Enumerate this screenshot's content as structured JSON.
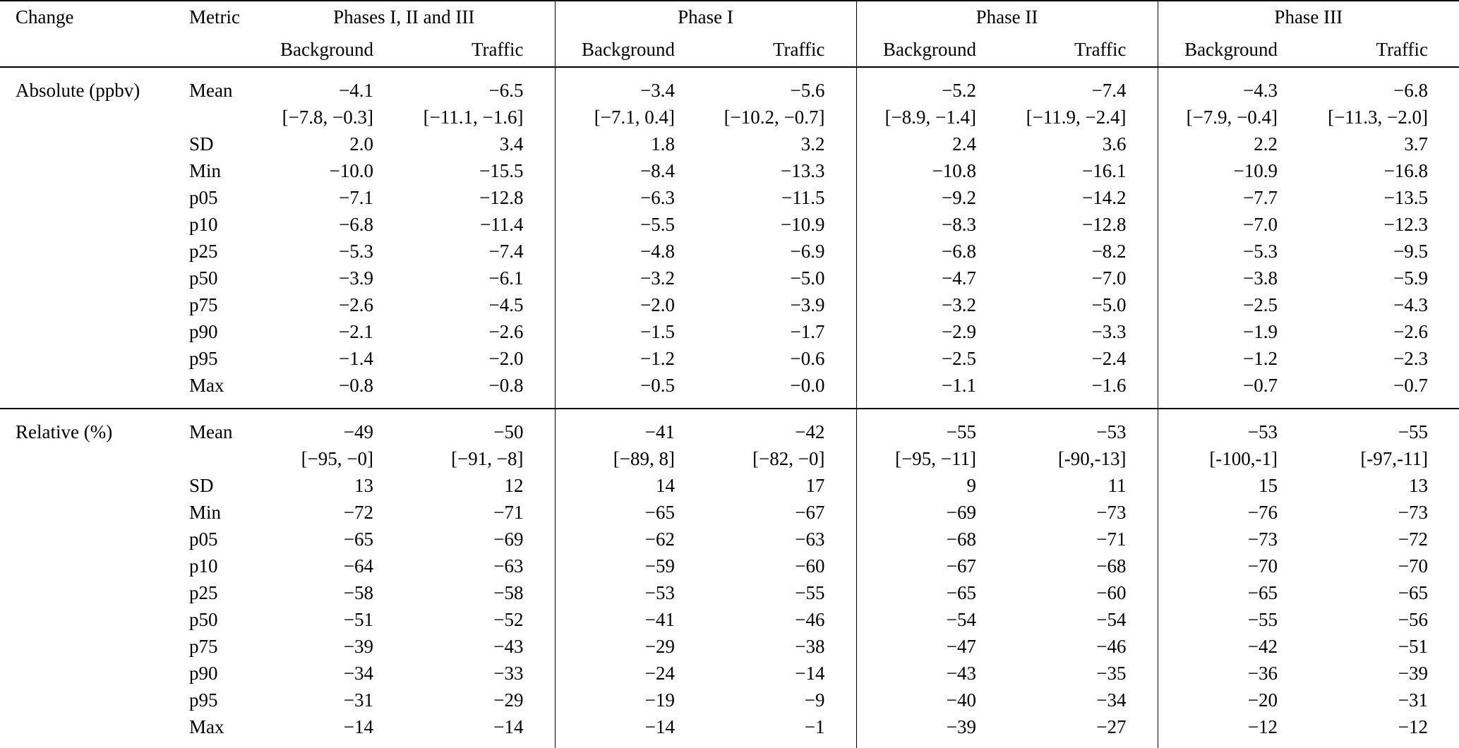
{
  "table": {
    "col_headers": {
      "change": "Change",
      "metric": "Metric",
      "groups": [
        {
          "label": "Phases I, II and III",
          "sub": [
            "Background",
            "Traffic"
          ]
        },
        {
          "label": "Phase I",
          "sub": [
            "Background",
            "Traffic"
          ]
        },
        {
          "label": "Phase II",
          "sub": [
            "Background",
            "Traffic"
          ]
        },
        {
          "label": "Phase III",
          "sub": [
            "Background",
            "Traffic"
          ]
        }
      ]
    },
    "sections": [
      {
        "change": "Absolute (ppbv)",
        "rows": [
          {
            "metric": "Mean",
            "values": [
              "−4.1",
              "−6.5",
              "−3.4",
              "−5.6",
              "−5.2",
              "−7.4",
              "−4.3",
              "−6.8"
            ]
          },
          {
            "metric": "",
            "values": [
              "[−7.8, −0.3]",
              "[−11.1, −1.6]",
              "[−7.1, 0.4]",
              "[−10.2, −0.7]",
              "[−8.9, −1.4]",
              "[−11.9, −2.4]",
              "[−7.9, −0.4]",
              "[−11.3, −2.0]"
            ]
          },
          {
            "metric": "SD",
            "values": [
              "2.0",
              "3.4",
              "1.8",
              "3.2",
              "2.4",
              "3.6",
              "2.2",
              "3.7"
            ]
          },
          {
            "metric": "Min",
            "values": [
              "−10.0",
              "−15.5",
              "−8.4",
              "−13.3",
              "−10.8",
              "−16.1",
              "−10.9",
              "−16.8"
            ]
          },
          {
            "metric": "p05",
            "values": [
              "−7.1",
              "−12.8",
              "−6.3",
              "−11.5",
              "−9.2",
              "−14.2",
              "−7.7",
              "−13.5"
            ]
          },
          {
            "metric": "p10",
            "values": [
              "−6.8",
              "−11.4",
              "−5.5",
              "−10.9",
              "−8.3",
              "−12.8",
              "−7.0",
              "−12.3"
            ]
          },
          {
            "metric": "p25",
            "values": [
              "−5.3",
              "−7.4",
              "−4.8",
              "−6.9",
              "−6.8",
              "−8.2",
              "−5.3",
              "−9.5"
            ]
          },
          {
            "metric": "p50",
            "values": [
              "−3.9",
              "−6.1",
              "−3.2",
              "−5.0",
              "−4.7",
              "−7.0",
              "−3.8",
              "−5.9"
            ]
          },
          {
            "metric": "p75",
            "values": [
              "−2.6",
              "−4.5",
              "−2.0",
              "−3.9",
              "−3.2",
              "−5.0",
              "−2.5",
              "−4.3"
            ]
          },
          {
            "metric": "p90",
            "values": [
              "−2.1",
              "−2.6",
              "−1.5",
              "−1.7",
              "−2.9",
              "−3.3",
              "−1.9",
              "−2.6"
            ]
          },
          {
            "metric": "p95",
            "values": [
              "−1.4",
              "−2.0",
              "−1.2",
              "−0.6",
              "−2.5",
              "−2.4",
              "−1.2",
              "−2.3"
            ]
          },
          {
            "metric": "Max",
            "values": [
              "−0.8",
              "−0.8",
              "−0.5",
              "−0.0",
              "−1.1",
              "−1.6",
              "−0.7",
              "−0.7"
            ]
          }
        ]
      },
      {
        "change": "Relative (%)",
        "rows": [
          {
            "metric": "Mean",
            "values": [
              "−49",
              "−50",
              "−41",
              "−42",
              "−55",
              "−53",
              "−53",
              "−55"
            ]
          },
          {
            "metric": "",
            "values": [
              "[−95, −0]",
              "[−91, −8]",
              "[−89, 8]",
              "[−82, −0]",
              "[−95, −11]",
              "[-90,-13]",
              "[-100,-1]",
              "[-97,-11]"
            ]
          },
          {
            "metric": "SD",
            "values": [
              "13",
              "12",
              "14",
              "17",
              "9",
              "11",
              "15",
              "13"
            ]
          },
          {
            "metric": "Min",
            "values": [
              "−72",
              "−71",
              "−65",
              "−67",
              "−69",
              "−73",
              "−76",
              "−73"
            ]
          },
          {
            "metric": "p05",
            "values": [
              "−65",
              "−69",
              "−62",
              "−63",
              "−68",
              "−71",
              "−73",
              "−72"
            ]
          },
          {
            "metric": "p10",
            "values": [
              "−64",
              "−63",
              "−59",
              "−60",
              "−67",
              "−68",
              "−70",
              "−70"
            ]
          },
          {
            "metric": "p25",
            "values": [
              "−58",
              "−58",
              "−53",
              "−55",
              "−65",
              "−60",
              "−65",
              "−65"
            ]
          },
          {
            "metric": "p50",
            "values": [
              "−51",
              "−52",
              "−41",
              "−46",
              "−54",
              "−54",
              "−55",
              "−56"
            ]
          },
          {
            "metric": "p75",
            "values": [
              "−39",
              "−43",
              "−29",
              "−38",
              "−47",
              "−46",
              "−42",
              "−51"
            ]
          },
          {
            "metric": "p90",
            "values": [
              "−34",
              "−33",
              "−24",
              "−14",
              "−43",
              "−35",
              "−36",
              "−39"
            ]
          },
          {
            "metric": "p95",
            "values": [
              "−31",
              "−29",
              "−19",
              "−9",
              "−40",
              "−34",
              "−20",
              "−31"
            ]
          },
          {
            "metric": "Max",
            "values": [
              "−14",
              "−14",
              "−14",
              "−1",
              "−39",
              "−27",
              "−12",
              "−12"
            ]
          }
        ]
      }
    ]
  }
}
